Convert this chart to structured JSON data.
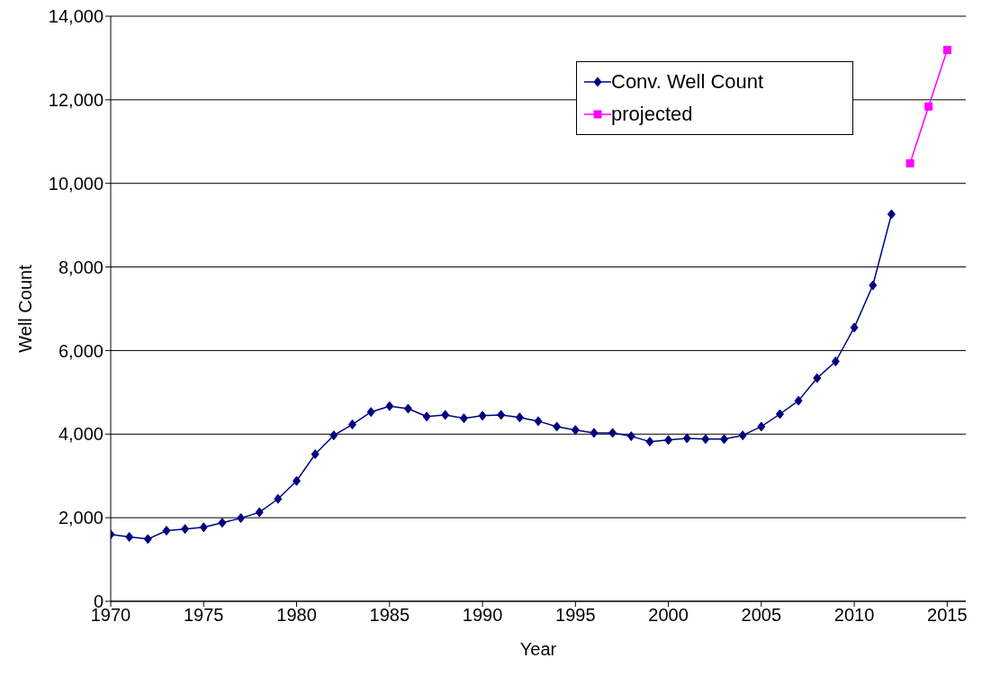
{
  "chart_data": {
    "type": "line",
    "xlabel": "Year",
    "ylabel": "Well Count",
    "xlim": [
      1970,
      2016
    ],
    "xticks": [
      1970,
      1975,
      1980,
      1985,
      1990,
      1995,
      2000,
      2005,
      2010,
      2015
    ],
    "ylim": [
      0,
      14000
    ],
    "yticks": [
      {
        "value": 0,
        "label": "0"
      },
      {
        "value": 2000,
        "label": "2,000"
      },
      {
        "value": 4000,
        "label": "4,000"
      },
      {
        "value": 6000,
        "label": "6,000"
      },
      {
        "value": 8000,
        "label": "8,000"
      },
      {
        "value": 10000,
        "label": "10,000"
      },
      {
        "value": 12000,
        "label": "12,000"
      },
      {
        "value": 14000,
        "label": "14,000"
      }
    ],
    "grid": "y",
    "legend": "top right",
    "line_style": "solid",
    "series": [
      {
        "name": "Conv. Well Count",
        "color": "#000080",
        "marker": "diamond",
        "x": [
          1970,
          1971,
          1972,
          1973,
          1974,
          1975,
          1976,
          1977,
          1978,
          1979,
          1980,
          1981,
          1982,
          1983,
          1984,
          1985,
          1986,
          1987,
          1988,
          1989,
          1990,
          1991,
          1992,
          1993,
          1994,
          1995,
          1996,
          1997,
          1998,
          1999,
          2000,
          2001,
          2002,
          2003,
          2004,
          2005,
          2006,
          2007,
          2008,
          2009,
          2010,
          2011,
          2012
        ],
        "values": [
          1600,
          1540,
          1490,
          1690,
          1730,
          1770,
          1880,
          1990,
          2130,
          2450,
          2880,
          3520,
          3970,
          4230,
          4530,
          4670,
          4610,
          4420,
          4460,
          4380,
          4440,
          4460,
          4400,
          4310,
          4180,
          4100,
          4030,
          4030,
          3950,
          3820,
          3860,
          3900,
          3880,
          3880,
          3970,
          4180,
          4480,
          4800,
          5340,
          5740,
          6550,
          7560,
          9260
        ]
      },
      {
        "name": "projected",
        "color": "#ff00ff",
        "marker": "square",
        "x": [
          2013,
          2014,
          2015
        ],
        "values": [
          10480,
          11840,
          13190
        ]
      }
    ]
  }
}
